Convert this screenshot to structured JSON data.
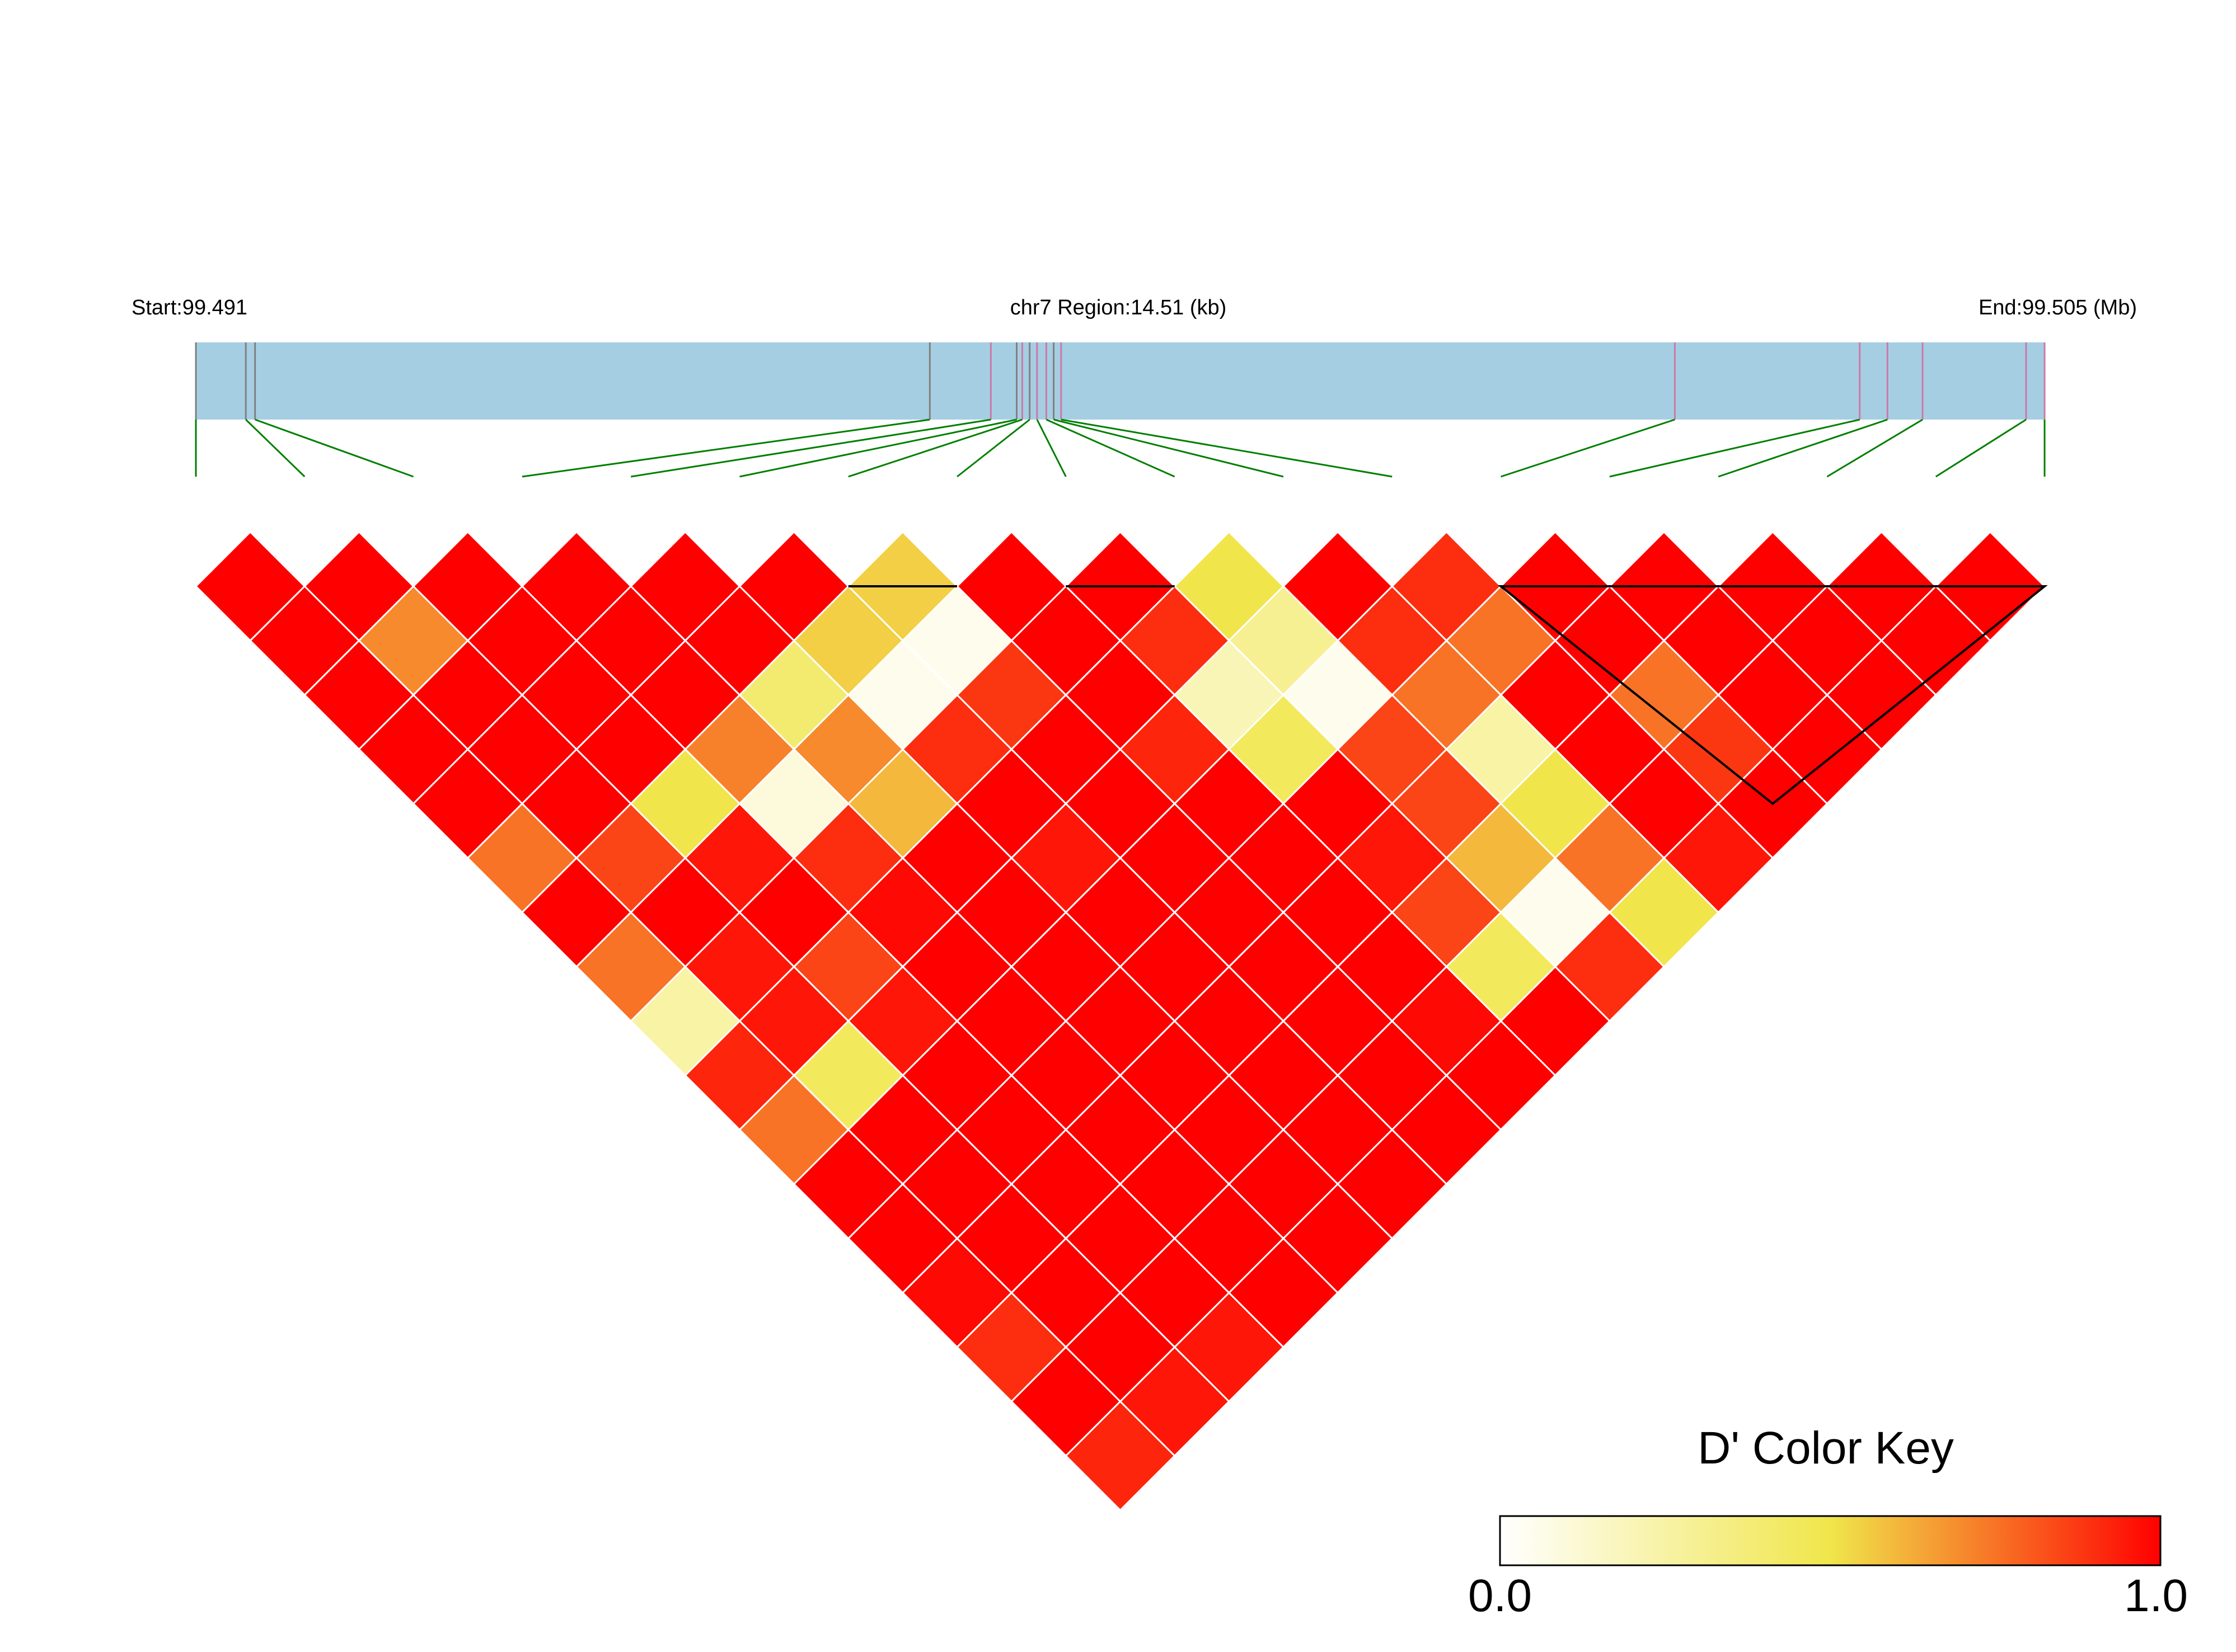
{
  "chart_data": {
    "type": "heatmap",
    "subtype": "linkage-disequilibrium-triangle",
    "region": {
      "start_label": "Start:99.491",
      "center_label": "chr7 Region:14.51 (kb)",
      "end_label": "End:99.505 (Mb)",
      "start_mb": 99.491,
      "end_mb": 99.505,
      "length_kb": 14.51
    },
    "snp_count": 18,
    "snp_relative_positions": [
      0.0,
      0.027,
      0.032,
      0.397,
      0.43,
      0.444,
      0.447,
      0.451,
      0.455,
      0.46,
      0.464,
      0.468,
      0.8,
      0.9,
      0.915,
      0.934,
      0.99,
      1.0
    ],
    "snp_marker_colors": [
      "#808080",
      "#808080",
      "#808080",
      "#808080",
      "#cc79a7",
      "#808080",
      "#cc79a7",
      "#808080",
      "#cc79a7",
      "#cc79a7",
      "#808080",
      "#cc79a7",
      "#cc79a7",
      "#cc79a7",
      "#cc79a7",
      "#cc79a7",
      "#cc79a7",
      "#cc79a7"
    ],
    "ld_dprime_by_offset": [
      [
        1,
        1,
        1,
        1,
        1,
        1,
        0.55,
        1,
        1,
        0.5,
        1,
        0.9,
        1,
        1,
        1,
        1,
        1
      ],
      [
        1,
        0.7,
        1,
        1,
        1,
        0.55,
        0.05,
        1,
        0.9,
        0.3,
        0.9,
        0.75,
        1,
        1,
        1,
        1
      ],
      [
        1,
        1,
        1,
        1,
        0.4,
        0.05,
        0.88,
        1,
        0.2,
        0.05,
        0.75,
        1,
        0.75,
        1,
        1
      ],
      [
        1,
        1,
        1,
        0.72,
        0.7,
        0.9,
        1,
        0.92,
        0.45,
        0.85,
        0.25,
        1,
        0.88,
        1
      ],
      [
        1,
        1,
        0.5,
        0.1,
        0.6,
        1,
        1,
        1,
        1,
        0.85,
        0.5,
        1,
        1
      ],
      [
        0.75,
        0.85,
        0.95,
        0.9,
        1,
        0.95,
        1,
        1,
        0.95,
        0.6,
        0.75,
        0.95
      ],
      [
        1,
        1,
        1,
        0.98,
        1,
        1,
        1,
        1,
        0.85,
        0.05,
        0.5
      ],
      [
        0.75,
        0.95,
        0.85,
        1,
        1,
        1,
        1,
        1,
        0.45,
        0.9
      ],
      [
        0.25,
        0.95,
        0.95,
        1,
        1,
        1,
        1,
        0.98,
        1
      ],
      [
        0.92,
        0.45,
        1,
        1,
        1,
        1,
        1,
        1
      ],
      [
        0.75,
        1,
        1,
        1,
        1,
        1,
        1
      ],
      [
        1,
        1,
        1,
        1,
        1,
        1
      ],
      [
        1,
        1,
        1,
        1,
        1
      ],
      [
        0.98,
        1,
        1,
        1
      ],
      [
        0.9,
        1,
        0.95
      ],
      [
        1,
        0.95
      ],
      [
        0.92
      ]
    ],
    "haplotype_blocks": [
      [
        6,
        7
      ],
      [
        8,
        9
      ],
      [
        12,
        17
      ]
    ],
    "color_key": {
      "title": "D' Color Key",
      "min_label": "0.0",
      "max_label": "1.0",
      "min": 0.0,
      "max": 1.0,
      "colors": [
        "#ffffff",
        "#f0e64b",
        "#ff0000"
      ]
    },
    "grid_line_color": "#ffffff",
    "region_bar_color": "#a6cee3",
    "connector_color": "#007f00"
  }
}
